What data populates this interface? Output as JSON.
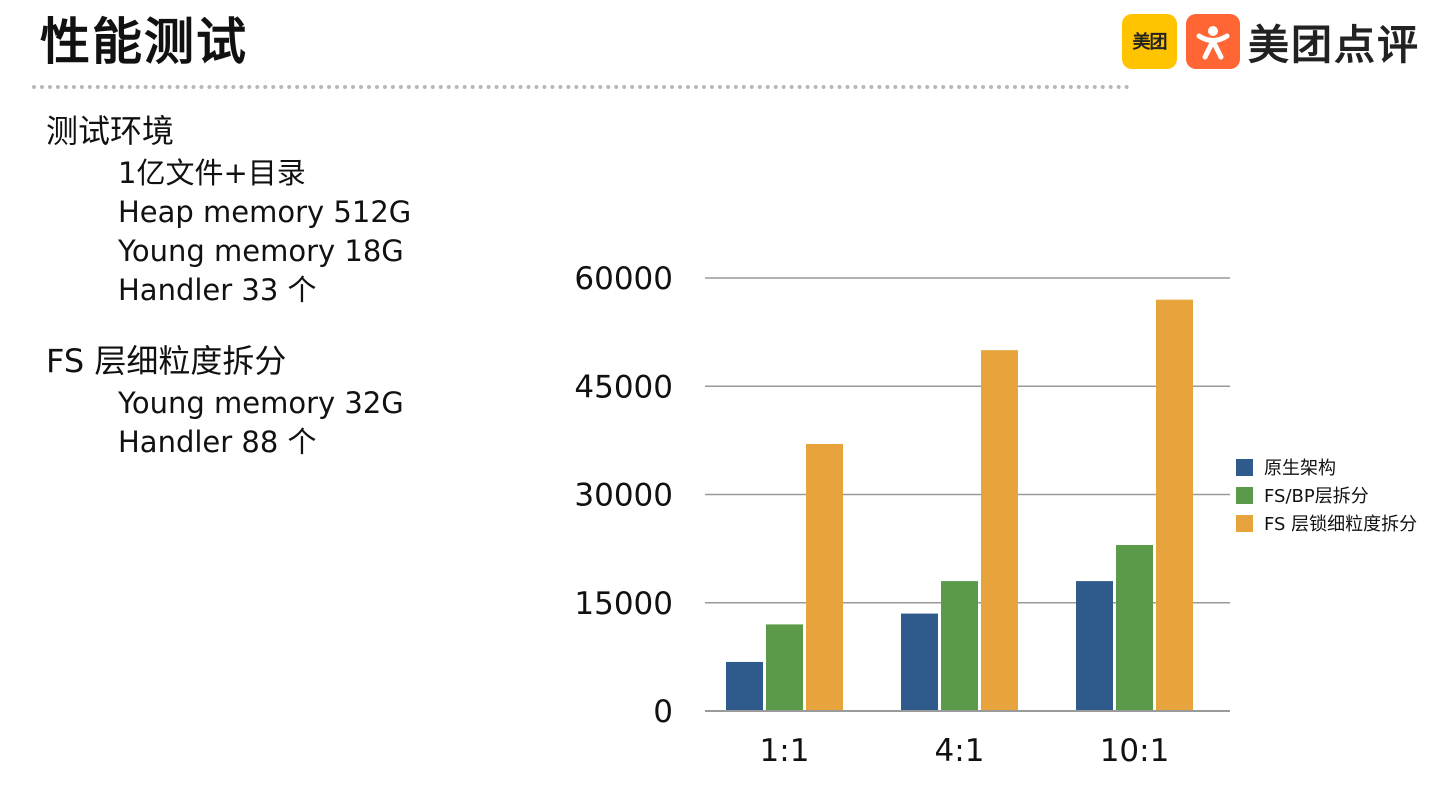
{
  "slide": {
    "title": "性能测试"
  },
  "logo": {
    "meituan_badge": "美团",
    "dianping_text": "美团点评",
    "colors": {
      "meituan": "#ffc300",
      "dianping": "#ff6633"
    }
  },
  "bullets": {
    "env_heading": "测试环境",
    "env_items": [
      "1亿文件+目录",
      "Heap memory 512G",
      "Young memory 18G",
      "Handler 33 个"
    ],
    "fs_heading": "FS 层细粒度拆分",
    "fs_items": [
      "Young memory 32G",
      "Handler 88 个"
    ]
  },
  "chart_data": {
    "type": "bar",
    "title": "",
    "xlabel": "",
    "ylabel": "",
    "categories": [
      "1:1",
      "4:1",
      "10:1"
    ],
    "series": [
      {
        "name": "原生架构",
        "values": [
          6800,
          13500,
          18000
        ],
        "color": "#2e5a8c"
      },
      {
        "name": "FS/BP层拆分",
        "values": [
          12000,
          18000,
          23000
        ],
        "color": "#5b9a48"
      },
      {
        "name": "FS 层锁细粒度拆分",
        "values": [
          37000,
          50000,
          57000
        ],
        "color": "#e7a43c"
      }
    ],
    "ylim": [
      0,
      60000
    ],
    "yticks": [
      0,
      15000,
      30000,
      45000,
      60000
    ],
    "grid": true,
    "legend_position": "right"
  }
}
